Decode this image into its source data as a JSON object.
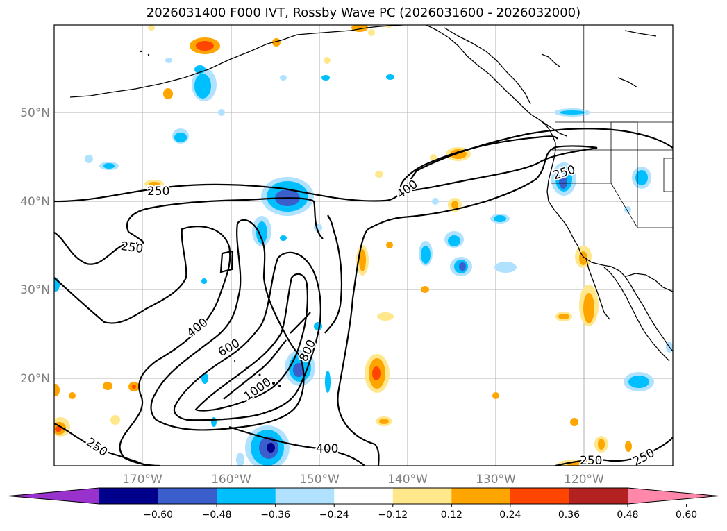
{
  "title": "2026031400 F000 IVT, Rossby Wave PC (2026031600 - 2026032000)",
  "lat_labels": [
    "50°N",
    "40°N",
    "30°N",
    "20°N"
  ],
  "lon_labels": [
    "170°W",
    "160°W",
    "150°W",
    "140°W",
    "130°W",
    "120°W"
  ],
  "colorbar": {
    "ticks": [
      "−0.60",
      "−0.48",
      "−0.36",
      "−0.24",
      "−0.12",
      "0.12",
      "0.24",
      "0.36",
      "0.48",
      "0.60"
    ],
    "colors": [
      "#9932cc",
      "#00008b",
      "#3a5fcd",
      "#00bfff",
      "#b0e2ff",
      "#ffffff",
      "#ffe78c",
      "#ffa500",
      "#ff4500",
      "#b22222",
      "#ff88aa"
    ]
  },
  "contour_labels": {
    "c250a": "250",
    "c250b": "250",
    "c250c": "250",
    "c250d": "250",
    "c250e": "250",
    "c250f": "250",
    "c400a": "400",
    "c400b": "400",
    "c400c": "400",
    "c600": "600",
    "c800": "800",
    "c1000": "1000"
  }
}
